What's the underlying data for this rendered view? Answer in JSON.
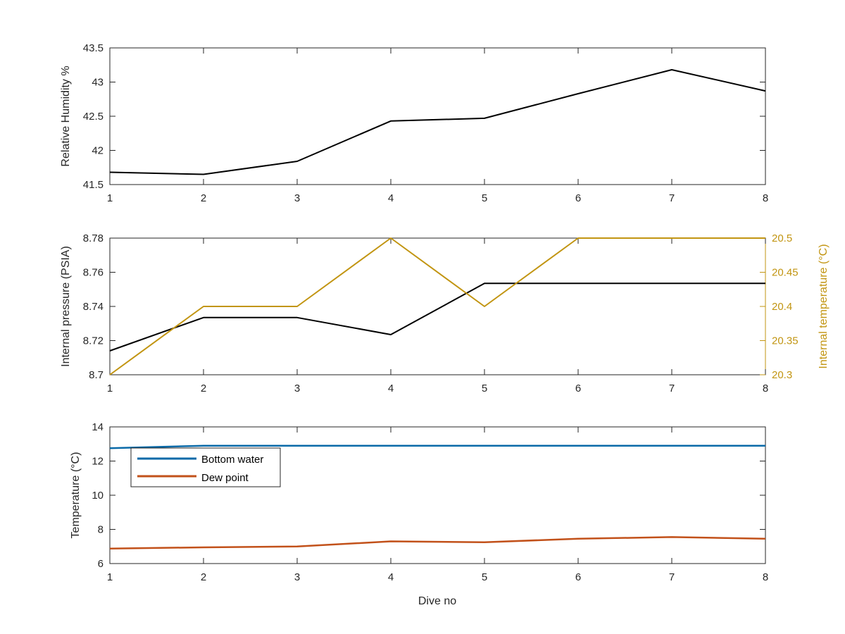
{
  "chart_data": [
    {
      "type": "line",
      "x": [
        1,
        2,
        3,
        4,
        5,
        6,
        7,
        8
      ],
      "xlim": [
        1,
        8
      ],
      "xticks": [
        "1",
        "2",
        "3",
        "4",
        "5",
        "6",
        "7",
        "8"
      ],
      "ylabel": "Relative Humidity %",
      "ylim": [
        41.5,
        43.5
      ],
      "yticks": [
        "41.5",
        "42",
        "42.5",
        "43",
        "43.5"
      ],
      "grid": false,
      "series": [
        {
          "values": [
            41.68,
            41.65,
            41.84,
            42.43,
            42.47,
            42.83,
            43.18,
            42.87
          ],
          "color": "#000000"
        }
      ]
    },
    {
      "type": "line",
      "x": [
        1,
        2,
        3,
        4,
        5,
        6,
        7,
        8
      ],
      "xlim": [
        1,
        8
      ],
      "xticks": [
        "1",
        "2",
        "3",
        "4",
        "5",
        "6",
        "7",
        "8"
      ],
      "ylabel": "Internal pressure (PSIA)",
      "ylim": [
        8.7,
        8.78
      ],
      "yticks": [
        "8.7",
        "8.72",
        "8.74",
        "8.76",
        "8.78"
      ],
      "ylabel_right": "Internal temperature (°C)",
      "ylim_right": [
        20.3,
        20.5
      ],
      "yticks_right": [
        "20.3",
        "20.35",
        "20.4",
        "20.45",
        "20.5"
      ],
      "grid": false,
      "series": [
        {
          "values": [
            8.714,
            8.7335,
            8.7335,
            8.7235,
            8.7535,
            8.7535,
            8.7535,
            8.7535
          ],
          "color": "#000000",
          "axis": "left"
        },
        {
          "values": [
            20.3,
            20.4,
            20.4,
            20.5,
            20.4,
            20.5,
            20.5,
            20.5
          ],
          "color": "#C29512",
          "axis": "right"
        }
      ]
    },
    {
      "type": "line",
      "x": [
        1,
        2,
        3,
        4,
        5,
        6,
        7,
        8
      ],
      "xlim": [
        1,
        8
      ],
      "xticks": [
        "1",
        "2",
        "3",
        "4",
        "5",
        "6",
        "7",
        "8"
      ],
      "xlabel": "Dive no",
      "ylabel": "Temperature (°C)",
      "ylim": [
        6,
        14
      ],
      "yticks": [
        "6",
        "8",
        "10",
        "12",
        "14"
      ],
      "grid": false,
      "legend": "top-left",
      "series": [
        {
          "name": "Bottom water",
          "values": [
            12.75,
            12.9,
            12.9,
            12.9,
            12.9,
            12.9,
            12.9,
            12.9
          ],
          "color": "#0A6AA8"
        },
        {
          "name": "Dew point",
          "values": [
            6.88,
            6.95,
            7.0,
            7.3,
            7.25,
            7.45,
            7.55,
            7.45
          ],
          "color": "#C2511A"
        }
      ]
    }
  ]
}
